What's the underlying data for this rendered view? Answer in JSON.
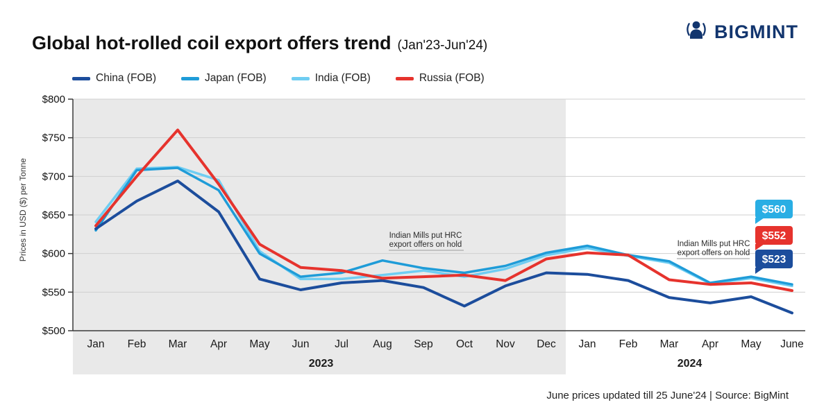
{
  "title": "Global hot-rolled coil export offers trend",
  "subtitle": "(Jan'23-Jun'24)",
  "brand": {
    "name": "BIGMINT",
    "color": "#12356e"
  },
  "ylabel": "Prices in USD ($) per Tonne",
  "footer": "June prices updated till 25 June'24 |  Source: BigMint",
  "legend": [
    {
      "label": "China (FOB)",
      "color": "#1c4d9c"
    },
    {
      "label": "Japan (FOB)",
      "color": "#1f9cd8"
    },
    {
      "label": "India (FOB)",
      "color": "#6fcdf2"
    },
    {
      "label": "Russia (FOB)",
      "color": "#e6332d"
    }
  ],
  "chart_data": {
    "type": "line",
    "title": "Global hot-rolled coil export offers trend (Jan'23-Jun'24)",
    "ylabel": "Prices in USD ($) per Tonne",
    "ylim": [
      500,
      800
    ],
    "yticks": [
      500,
      550,
      600,
      650,
      700,
      750,
      800
    ],
    "ytick_labels": [
      "$500",
      "$550",
      "$600",
      "$650",
      "$700",
      "$750",
      "$800"
    ],
    "x": [
      "Jan",
      "Feb",
      "Mar",
      "Apr",
      "May",
      "Jun",
      "Jul",
      "Aug",
      "Sep",
      "Oct",
      "Nov",
      "Dec",
      "Jan",
      "Feb",
      "Mar",
      "Apr",
      "May",
      "June"
    ],
    "year_groups": [
      {
        "label": "2023",
        "from": 0,
        "to": 11
      },
      {
        "label": "2024",
        "from": 12,
        "to": 17
      }
    ],
    "grid": true,
    "legend_position": "top-left",
    "series": [
      {
        "name": "China (FOB)",
        "color": "#1c4d9c",
        "width": 4,
        "values": [
          632,
          668,
          694,
          654,
          567,
          553,
          562,
          565,
          556,
          532,
          558,
          575,
          573,
          565,
          543,
          536,
          544,
          523
        ]
      },
      {
        "name": "Japan (FOB)",
        "color": "#1f9cd8",
        "width": 3.5,
        "values": [
          630,
          708,
          711,
          682,
          600,
          570,
          575,
          591,
          581,
          575,
          584,
          601,
          610,
          598,
          590,
          562,
          570,
          560
        ]
      },
      {
        "name": "India (FOB)",
        "color": "#6fcdf2",
        "width": 3.5,
        "values": [
          641,
          710,
          712,
          695,
          603,
          567,
          567,
          572,
          578,
          570,
          580,
          598,
          607,
          597,
          588,
          561,
          568,
          558
        ]
      },
      {
        "name": "Russia (FOB)",
        "color": "#e6332d",
        "width": 4,
        "values": [
          636,
          700,
          760,
          690,
          612,
          582,
          578,
          568,
          570,
          572,
          565,
          593,
          601,
          598,
          566,
          560,
          562,
          552
        ]
      }
    ],
    "annotations": [
      {
        "lines": [
          "Indian Mills put HRC",
          "export offers on hold"
        ]
      },
      {
        "lines": [
          "Indian Mills put HRC",
          "export offers on hold"
        ]
      }
    ],
    "end_labels": [
      {
        "text": "$560",
        "color": "#29aee4"
      },
      {
        "text": "$552",
        "color": "#e6332d"
      },
      {
        "text": "$523",
        "color": "#1c4d9c"
      }
    ]
  }
}
